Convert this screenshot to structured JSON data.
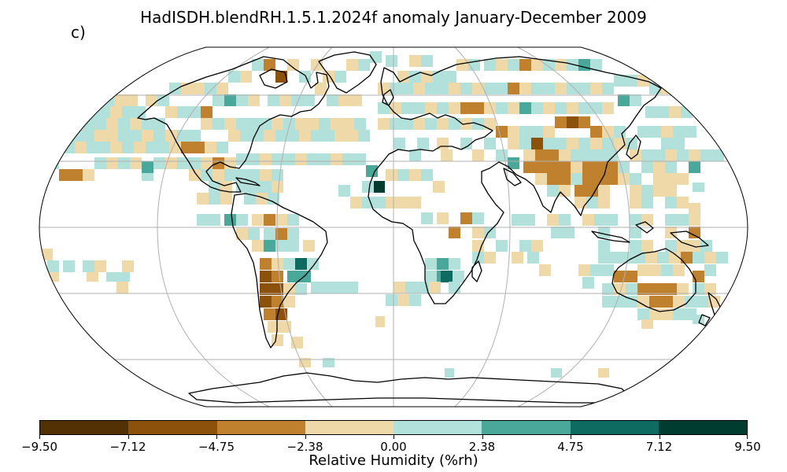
{
  "title": "HadISDH.blendRH.1.5.1.2024f anomaly January-December 2009",
  "panel_label": "c)",
  "map": {
    "projection": "Robinson",
    "gridlines": true,
    "coastlines": true
  },
  "colorbar": {
    "label": "Relative Humidity (%rh)",
    "ticks": [
      "−9.50",
      "−7.12",
      "−4.75",
      "−2.38",
      "0.00",
      "2.38",
      "4.75",
      "7.12",
      "9.50"
    ],
    "colors": [
      "#543005",
      "#8c510a",
      "#bf812d",
      "#f0d9a8",
      "#b2e0da",
      "#4aa89a",
      "#0e6b61",
      "#003c30"
    ]
  }
}
